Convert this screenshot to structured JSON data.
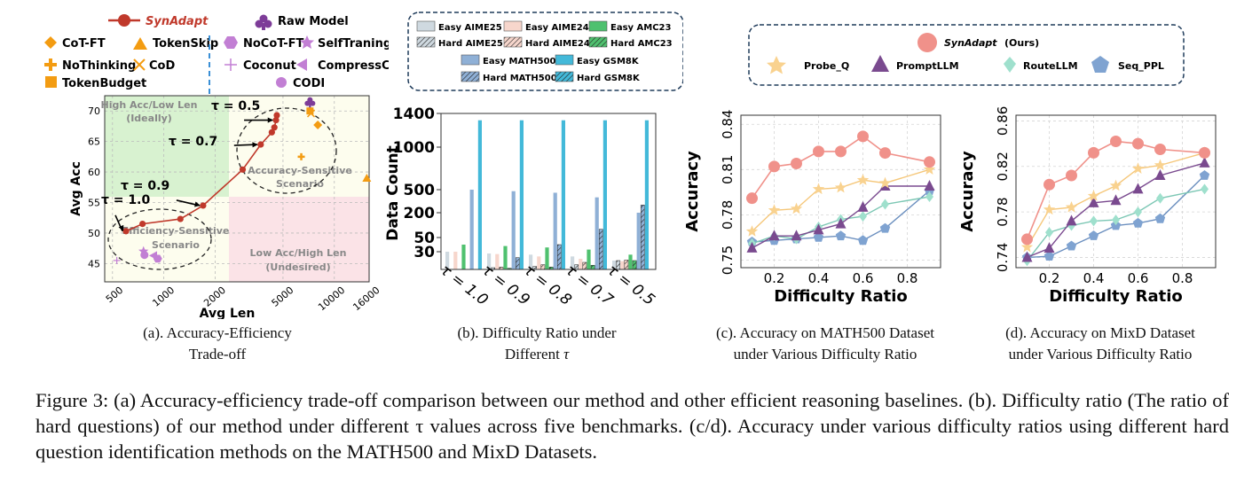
{
  "panel_a": {
    "legend": {
      "synadapt": "SynAdapt",
      "raw_model": "Raw Model",
      "cot_ft": "CoT-FT",
      "tokenskip": "TokenSkip",
      "nocot_ft": "NoCoT-FT",
      "selftraning": "SelfTraning",
      "nothinking": "NoThinking",
      "cod": "CoD",
      "coconut": "Coconut",
      "compresscot": "CompressCoT",
      "tokenbudget": "TokenBudget",
      "codi": "CODI"
    },
    "region_labels": {
      "high_acc_1": "High Acc/Low Len",
      "high_acc_2": "(Ideally)",
      "acc_sens_1": "Accuracy-Sensitive",
      "acc_sens_2": "Scenario",
      "eff_sens_1": "Efficiency-Sensitive",
      "eff_sens_2": "Scenario",
      "low_acc_1": "Low Acc/High Len",
      "low_acc_2": "(Undesired)"
    },
    "tau_labels": {
      "t05": "τ = 0.5",
      "t07": "τ = 0.7",
      "t09": "τ = 0.9",
      "t10": "τ = 1.0"
    },
    "caption_line1": "(a). Accuracy-Efficiency",
    "caption_line2": "Trade-off",
    "colors": {
      "synadapt": "#c0392b",
      "orange": "#f39c12",
      "purple": "#c27fd4",
      "raw": "#7d3c98",
      "green_region": "#d8f2d0",
      "red_region": "#fbe3e7",
      "yellow_region": "#fdfdee"
    }
  },
  "panel_b": {
    "legend": {
      "easy_aime25": "Easy AIME25",
      "easy_aime24": "Easy AIME24",
      "easy_amc23": "Easy AMC23",
      "hard_aime25": "Hard AIME25",
      "hard_aime24": "Hard AIME24",
      "hard_amc23": "Hard AMC23",
      "easy_math500": "Easy MATH500",
      "easy_gsm8k": "Easy GSM8K",
      "hard_math500": "Hard MATH500",
      "hard_gsm8k": "Hard GSM8K"
    },
    "caption_line1": "(b). Difficulty Ratio under",
    "caption_line2_prefix": "Different",
    "caption_line2_symbol": "τ"
  },
  "panel_c": {
    "caption_line1": "(c). Accuracy on MATH500 Dataset",
    "caption_line2": "under Various Difficulty Ratio"
  },
  "panel_d": {
    "caption_line1": "(d). Accuracy on MixD Dataset",
    "caption_line2": "under Various Difficulty Ratio"
  },
  "legend_cd": {
    "synadapt": "SynAdapt",
    "ours": "(Ours)",
    "probe_q": "Probe_Q",
    "promptllm": "PromptLLM",
    "routellm": "RouteLLM",
    "seq_ppl": "Seq_PPL"
  },
  "figure_caption": "Figure 3: (a) Accuracy-efficiency trade-off comparison between our method and other efficient reasoning baselines. (b). Difficulty ratio (The ratio of hard questions) of our method under different τ values across five benchmarks. (c/d). Accuracy under various difficulty ratios using different hard question identification methods on the MATH500 and MixD Datasets.",
  "chart_data": [
    {
      "type": "scatter",
      "id": "a",
      "title": "",
      "xlabel": "Avg Len",
      "ylabel": "Avg Acc",
      "xscale": "log",
      "xlim": [
        450,
        16000
      ],
      "ylim": [
        42,
        72.5
      ],
      "xticks": [
        500,
        1000,
        2000,
        5000,
        10000,
        16000
      ],
      "xtick_labels": [
        "500",
        "1000",
        "2000",
        "5000",
        "10000",
        "16000"
      ],
      "yticks": [
        45,
        50,
        55,
        60,
        65,
        70
      ],
      "series": [
        {
          "name": "SynAdapt",
          "marker": "circle",
          "line": true,
          "points": [
            [
              600,
              50.3
            ],
            [
              750,
              51.5
            ],
            [
              1250,
              52.3
            ],
            [
              1700,
              54.5
            ],
            [
              2900,
              60.4
            ],
            [
              3700,
              64.5
            ],
            [
              4300,
              66.5
            ],
            [
              4450,
              67.3
            ],
            [
              4550,
              68.5
            ],
            [
              4600,
              69.3
            ]
          ]
        },
        {
          "name": "Raw Model",
          "marker": "club",
          "points": [
            [
              7200,
              71.4
            ]
          ]
        },
        {
          "name": "CoT-FT",
          "marker": "diamond",
          "points": [
            [
              8000,
              67.7
            ]
          ]
        },
        {
          "name": "TokenSkip",
          "marker": "triangle",
          "points": [
            [
              15500,
              59.0
            ]
          ]
        },
        {
          "name": "NoThinking",
          "marker": "plus",
          "points": [
            [
              6400,
              62.5
            ]
          ]
        },
        {
          "name": "CoD",
          "marker": "x",
          "points": [
            [
              7300,
              69.6
            ]
          ]
        },
        {
          "name": "TokenBudget",
          "marker": "square",
          "points": [
            [
              7200,
              70.0
            ]
          ]
        },
        {
          "name": "NoCoT-FT",
          "marker": "hexagon",
          "points": [
            [
              920,
              45.8
            ]
          ]
        },
        {
          "name": "SelfTraning",
          "marker": "star",
          "points": [
            [
              760,
              47.0
            ]
          ]
        },
        {
          "name": "Coconut",
          "marker": "thinplus",
          "points": [
            [
              530,
              45.5
            ]
          ]
        },
        {
          "name": "CompressCoT",
          "marker": "lefttri",
          "points": [
            [
              870,
              46.3
            ]
          ]
        },
        {
          "name": "CODI",
          "marker": "circle",
          "points": [
            [
              770,
              46.4
            ]
          ]
        }
      ],
      "annotations": [
        {
          "text": "τ = 0.5",
          "x": 4550,
          "y": 68.5
        },
        {
          "text": "τ = 0.7",
          "x": 3700,
          "y": 64.5
        },
        {
          "text": "τ = 0.9",
          "x": 1700,
          "y": 54.5
        },
        {
          "text": "τ = 1.0",
          "x": 600,
          "y": 50.3
        }
      ]
    },
    {
      "type": "bar",
      "id": "b",
      "xlabel": "",
      "ylabel": "Data Count",
      "categories": [
        "τ = 1.0",
        "τ = 0.9",
        "τ = 0.8",
        "τ = 0.7",
        "τ = 0.5"
      ],
      "yticks": [
        30,
        50,
        200,
        500,
        1000,
        1400
      ],
      "series": [
        {
          "name": "Easy AIME25",
          "hatched": false,
          "values": [
            30,
            27,
            25,
            22,
            15
          ]
        },
        {
          "name": "Hard AIME25",
          "hatched": true,
          "values": [
            0,
            3,
            5,
            8,
            15
          ]
        },
        {
          "name": "Easy AIME24",
          "hatched": false,
          "values": [
            30,
            26,
            22,
            18,
            14
          ]
        },
        {
          "name": "Hard AIME24",
          "hatched": true,
          "values": [
            0,
            4,
            8,
            12,
            16
          ]
        },
        {
          "name": "Easy AMC23",
          "hatched": false,
          "values": [
            40,
            38,
            36,
            33,
            25
          ]
        },
        {
          "name": "Hard AMC23",
          "hatched": true,
          "values": [
            0,
            2,
            4,
            7,
            15
          ]
        },
        {
          "name": "Easy MATH500",
          "hatched": false,
          "values": [
            500,
            480,
            460,
            400,
            200
          ]
        },
        {
          "name": "Hard MATH500",
          "hatched": true,
          "values": [
            0,
            20,
            40,
            100,
            300
          ]
        },
        {
          "name": "Easy GSM8K",
          "hatched": false,
          "values": [
            1319,
            1319,
            1319,
            1319,
            1319
          ]
        },
        {
          "name": "Hard GSM8K",
          "hatched": true,
          "values": [
            0,
            0,
            0,
            0,
            0
          ]
        }
      ]
    },
    {
      "type": "line",
      "id": "c",
      "title": "",
      "xlabel": "Difficulty Ratio",
      "ylabel": "Accuracy",
      "xlim": [
        0.05,
        0.95
      ],
      "ylim": [
        0.745,
        0.846
      ],
      "xticks": [
        0.2,
        0.4,
        0.6,
        0.8
      ],
      "yticks": [
        0.75,
        0.78,
        0.81,
        0.84
      ],
      "x": [
        0.1,
        0.2,
        0.3,
        0.4,
        0.5,
        0.6,
        0.7,
        0.9
      ],
      "series": [
        {
          "name": "SynAdapt",
          "values": [
            0.791,
            0.812,
            0.814,
            0.822,
            0.822,
            0.832,
            0.821,
            0.815
          ]
        },
        {
          "name": "Probe_Q",
          "values": [
            0.769,
            0.783,
            0.784,
            0.797,
            0.798,
            0.803,
            0.801,
            0.81
          ]
        },
        {
          "name": "PromptLLM",
          "values": [
            0.758,
            0.766,
            0.766,
            0.77,
            0.774,
            0.785,
            0.799,
            0.799
          ]
        },
        {
          "name": "RouteLLM",
          "values": [
            0.761,
            0.766,
            0.764,
            0.772,
            0.777,
            0.779,
            0.787,
            0.792
          ]
        },
        {
          "name": "Seq_PPL",
          "values": [
            0.762,
            0.763,
            0.764,
            0.765,
            0.766,
            0.763,
            0.771,
            0.796
          ]
        }
      ]
    },
    {
      "type": "line",
      "id": "d",
      "title": "",
      "xlabel": "Difficulty Ratio",
      "ylabel": "Accuracy",
      "xlim": [
        0.05,
        0.95
      ],
      "ylim": [
        0.731,
        0.865
      ],
      "xticks": [
        0.2,
        0.4,
        0.6,
        0.8
      ],
      "yticks": [
        0.74,
        0.78,
        0.82,
        0.86
      ],
      "x": [
        0.1,
        0.2,
        0.3,
        0.4,
        0.5,
        0.6,
        0.7,
        0.9
      ],
      "series": [
        {
          "name": "SynAdapt",
          "values": [
            0.756,
            0.804,
            0.812,
            0.832,
            0.842,
            0.84,
            0.835,
            0.832
          ]
        },
        {
          "name": "Probe_Q",
          "values": [
            0.749,
            0.782,
            0.784,
            0.794,
            0.803,
            0.818,
            0.821,
            0.832
          ]
        },
        {
          "name": "PromptLLM",
          "values": [
            0.74,
            0.748,
            0.772,
            0.788,
            0.79,
            0.8,
            0.812,
            0.823
          ]
        },
        {
          "name": "RouteLLM",
          "values": [
            0.737,
            0.762,
            0.768,
            0.772,
            0.773,
            0.78,
            0.792,
            0.8
          ]
        },
        {
          "name": "Seq_PPL",
          "values": [
            0.74,
            0.741,
            0.75,
            0.759,
            0.768,
            0.77,
            0.774,
            0.812
          ]
        }
      ]
    }
  ]
}
